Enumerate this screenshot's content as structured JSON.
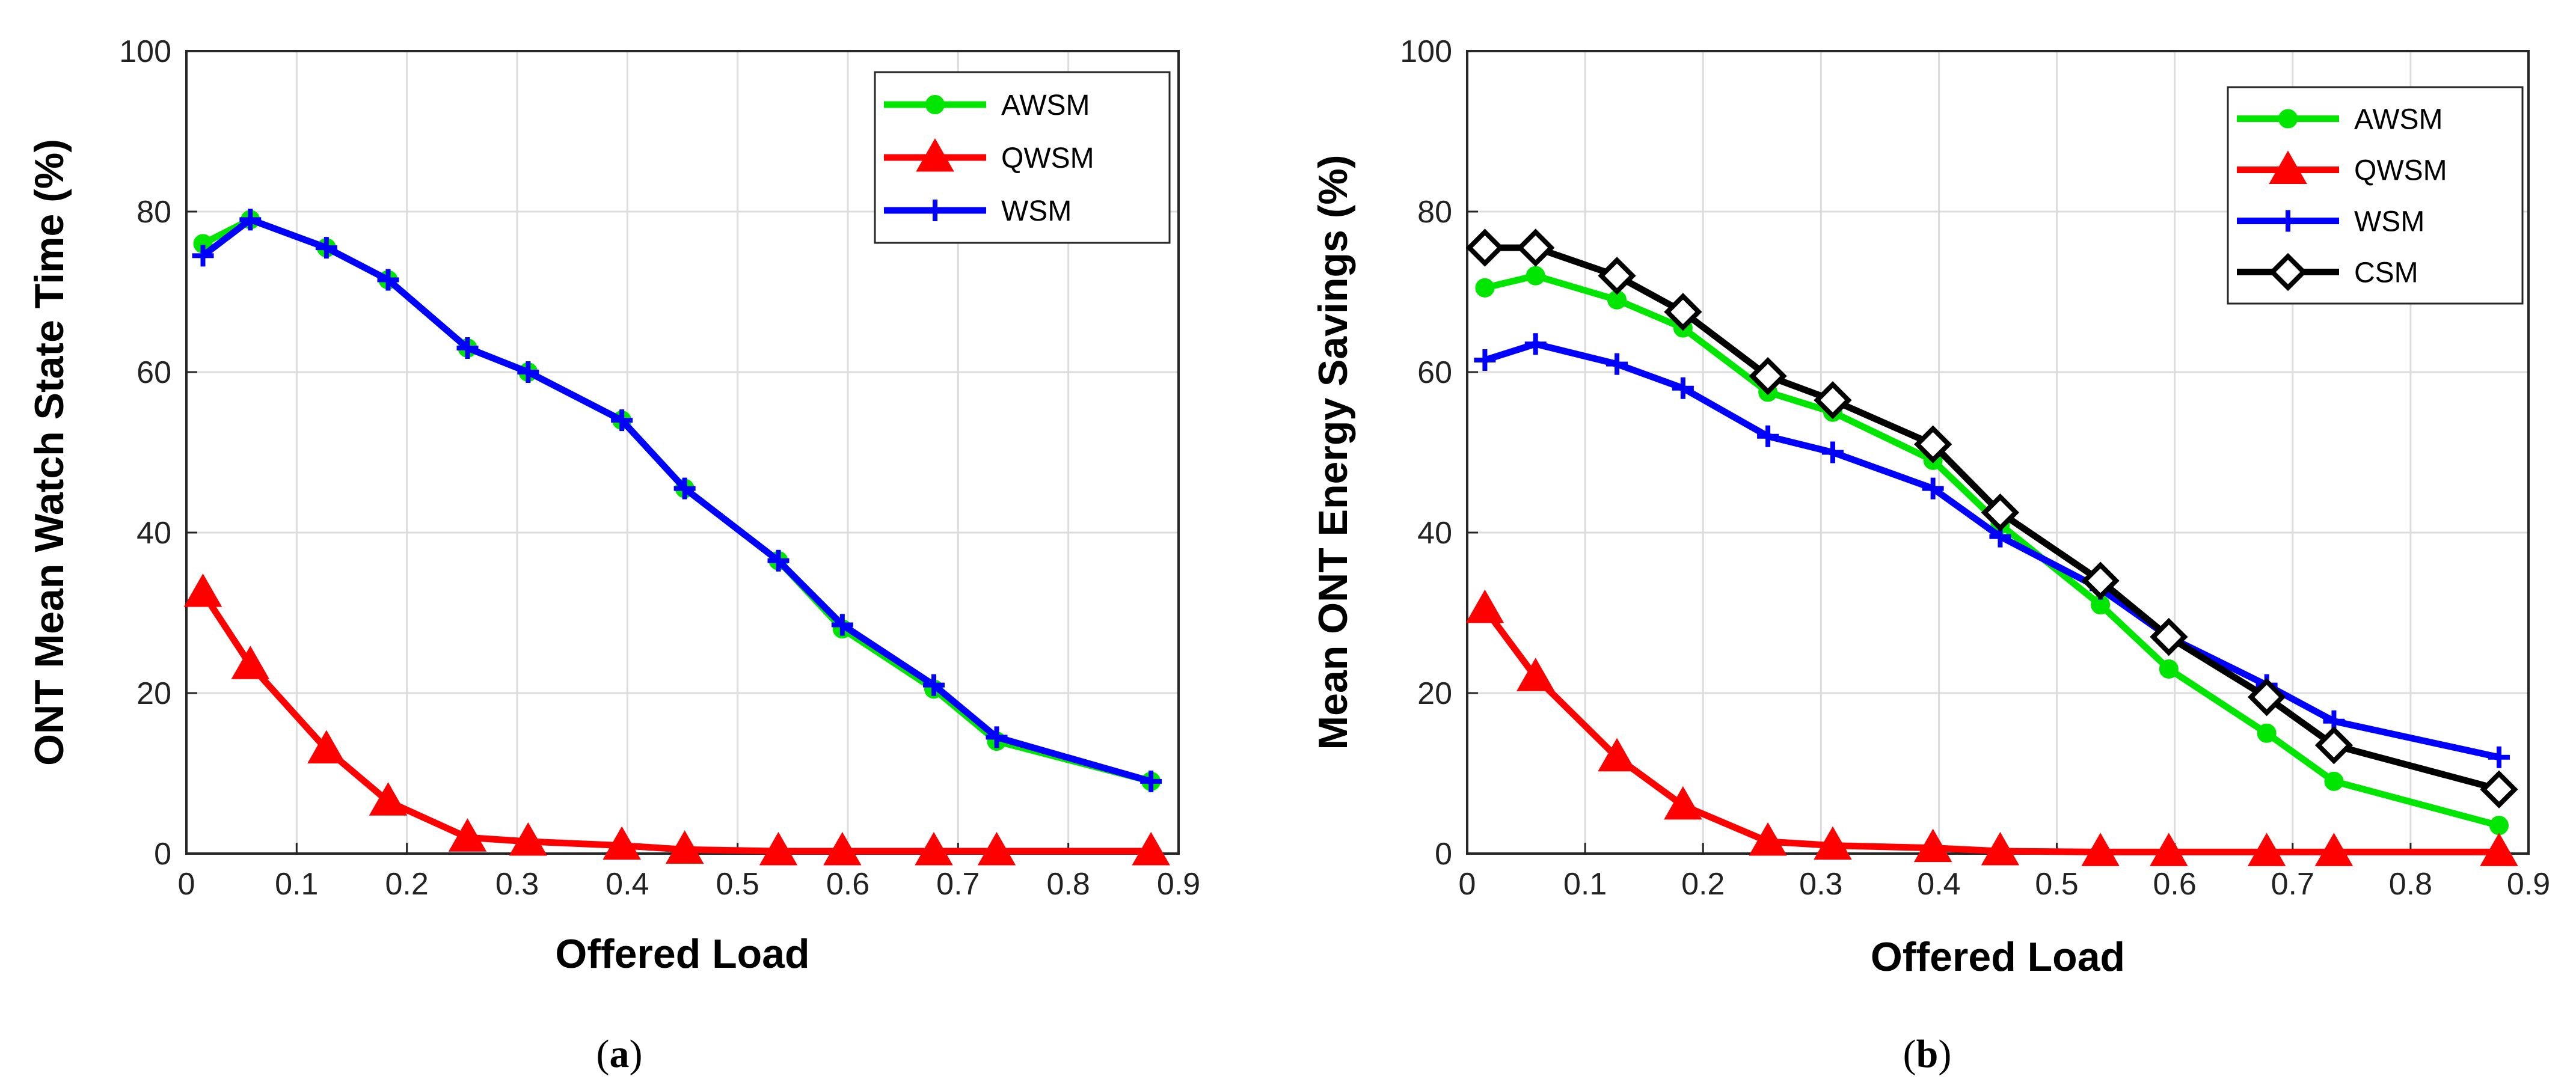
{
  "colors": {
    "AWSM": "#00e600",
    "QWSM": "#ff0000",
    "WSM": "#0000ff",
    "CSM": "#000000"
  },
  "chart_data": [
    {
      "type": "line",
      "panel": "a",
      "caption_letter": "a",
      "xlabel": "Offered Load",
      "ylabel": "ONT Mean Watch State Time (%)",
      "xlim": [
        0,
        0.9
      ],
      "ylim": [
        0,
        100
      ],
      "xticks": [
        "0",
        "0.1",
        "0.2",
        "0.3",
        "0.4",
        "0.5",
        "0.6",
        "0.7",
        "0.8",
        "0.9"
      ],
      "yticks": [
        "0",
        "20",
        "40",
        "60",
        "80",
        "100"
      ],
      "grid": true,
      "legend_position": "top-right",
      "x": [
        0.015,
        0.058,
        0.127,
        0.183,
        0.255,
        0.31,
        0.395,
        0.452,
        0.537,
        0.595,
        0.678,
        0.735,
        0.875
      ],
      "series": [
        {
          "name": "AWSM",
          "marker": "circle",
          "values": [
            76,
            79,
            75.5,
            71.5,
            63,
            60,
            54,
            45.5,
            36.5,
            28,
            20.5,
            14,
            9
          ]
        },
        {
          "name": "QWSM",
          "marker": "triangle",
          "values": [
            32.5,
            23.5,
            13,
            6.5,
            2,
            1.5,
            1,
            0.5,
            0.3,
            0.3,
            0.3,
            0.3,
            0.3
          ]
        },
        {
          "name": "WSM",
          "marker": "plus",
          "values": [
            74.5,
            79,
            75.5,
            71.5,
            63,
            60,
            54,
            45.5,
            36.5,
            28.5,
            21,
            14.5,
            9
          ]
        }
      ]
    },
    {
      "type": "line",
      "panel": "b",
      "caption_letter": "b",
      "xlabel": "Offered Load",
      "ylabel": "Mean ONT Energy Savings (%)",
      "xlim": [
        0,
        0.9
      ],
      "ylim": [
        0,
        100
      ],
      "xticks": [
        "0",
        "0.1",
        "0.2",
        "0.3",
        "0.4",
        "0.5",
        "0.6",
        "0.7",
        "0.8",
        "0.9"
      ],
      "yticks": [
        "0",
        "20",
        "40",
        "60",
        "80",
        "100"
      ],
      "grid": true,
      "legend_position": "top-right",
      "x": [
        0.015,
        0.058,
        0.127,
        0.183,
        0.255,
        0.31,
        0.395,
        0.452,
        0.537,
        0.595,
        0.678,
        0.735,
        0.875
      ],
      "series": [
        {
          "name": "AWSM",
          "marker": "circle",
          "values": [
            70.5,
            72,
            69,
            65.5,
            57.5,
            55,
            49,
            41,
            31,
            23,
            15,
            9,
            3.5
          ]
        },
        {
          "name": "QWSM",
          "marker": "triangle",
          "values": [
            30.5,
            22,
            12,
            6,
            1.5,
            1,
            0.7,
            0.3,
            0.2,
            0.2,
            0.2,
            0.2,
            0.2
          ]
        },
        {
          "name": "WSM",
          "marker": "plus",
          "values": [
            61.5,
            63.5,
            61,
            58,
            52,
            50,
            45.5,
            39.5,
            33,
            27,
            21,
            16.5,
            12
          ]
        },
        {
          "name": "CSM",
          "marker": "diamond",
          "values": [
            75.5,
            75.5,
            72,
            67.5,
            59.5,
            56.5,
            51,
            42.5,
            34,
            27,
            19.5,
            13.5,
            8
          ]
        }
      ]
    }
  ]
}
